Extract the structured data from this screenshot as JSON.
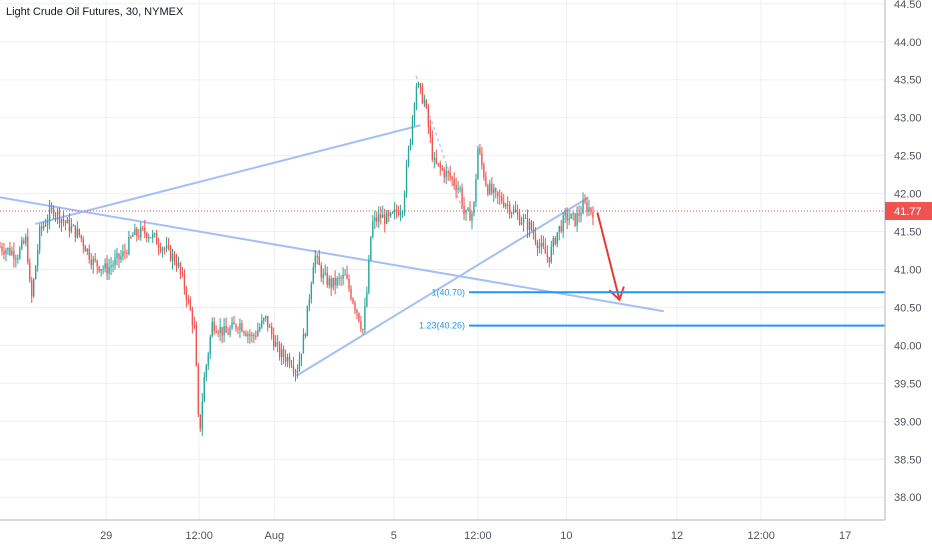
{
  "title": "Light Crude Oil Futures, 30, NYMEX",
  "colors": {
    "up": "#26a69a",
    "down": "#ef5350",
    "trendline": "#a3bff5",
    "fib": "#2196f3",
    "arrow": "#e53935",
    "price_badge": "#ef5350",
    "grid": "#eef0f3",
    "axis_text": "#50535e"
  },
  "chart_data": {
    "type": "candlestick",
    "title": "Light Crude Oil Futures, 30, NYMEX",
    "ylim": [
      37.7,
      44.55
    ],
    "y_ticks": [
      "38.00",
      "38.50",
      "39.00",
      "39.50",
      "40.00",
      "40.50",
      "41.00",
      "41.50",
      "42.00",
      "42.50",
      "43.00",
      "43.50",
      "44.00",
      "44.50"
    ],
    "x_ticks": [
      {
        "label": "29",
        "t": 0.12
      },
      {
        "label": "12:00",
        "t": 0.225
      },
      {
        "label": "Aug",
        "t": 0.31
      },
      {
        "label": "5",
        "t": 0.445
      },
      {
        "label": "12:00",
        "t": 0.54
      },
      {
        "label": "10",
        "t": 0.64
      },
      {
        "label": "12",
        "t": 0.765
      },
      {
        "label": "12:00",
        "t": 0.86
      },
      {
        "label": "17",
        "t": 0.955
      }
    ],
    "last_price": "41.77",
    "path": [
      [
        0.0,
        41.3
      ],
      [
        0.02,
        41.2
      ],
      [
        0.03,
        41.4
      ],
      [
        0.035,
        40.55
      ],
      [
        0.045,
        41.5
      ],
      [
        0.06,
        41.8
      ],
      [
        0.075,
        41.6
      ],
      [
        0.09,
        41.45
      ],
      [
        0.105,
        41.1
      ],
      [
        0.12,
        41.0
      ],
      [
        0.14,
        41.2
      ],
      [
        0.15,
        41.45
      ],
      [
        0.165,
        41.5
      ],
      [
        0.18,
        41.35
      ],
      [
        0.2,
        41.1
      ],
      [
        0.21,
        40.7
      ],
      [
        0.22,
        40.2
      ],
      [
        0.225,
        38.75
      ],
      [
        0.23,
        39.5
      ],
      [
        0.24,
        40.3
      ],
      [
        0.255,
        40.15
      ],
      [
        0.27,
        40.3
      ],
      [
        0.285,
        40.1
      ],
      [
        0.3,
        40.35
      ],
      [
        0.315,
        39.9
      ],
      [
        0.33,
        39.8
      ],
      [
        0.335,
        39.65
      ],
      [
        0.345,
        40.2
      ],
      [
        0.355,
        41.2
      ],
      [
        0.365,
        40.9
      ],
      [
        0.375,
        40.8
      ],
      [
        0.39,
        40.9
      ],
      [
        0.405,
        40.4
      ],
      [
        0.41,
        40.2
      ],
      [
        0.415,
        40.75
      ],
      [
        0.42,
        41.6
      ],
      [
        0.43,
        41.7
      ],
      [
        0.44,
        41.65
      ],
      [
        0.455,
        41.85
      ],
      [
        0.465,
        42.9
      ],
      [
        0.47,
        43.45
      ],
      [
        0.48,
        43.2
      ],
      [
        0.49,
        42.4
      ],
      [
        0.5,
        42.3
      ],
      [
        0.51,
        42.2
      ],
      [
        0.52,
        42.05
      ],
      [
        0.525,
        41.7
      ],
      [
        0.535,
        41.75
      ],
      [
        0.54,
        42.6
      ],
      [
        0.55,
        42.1
      ],
      [
        0.56,
        41.95
      ],
      [
        0.57,
        41.9
      ],
      [
        0.585,
        41.7
      ],
      [
        0.6,
        41.55
      ],
      [
        0.61,
        41.3
      ],
      [
        0.62,
        41.15
      ],
      [
        0.63,
        41.5
      ],
      [
        0.64,
        41.7
      ],
      [
        0.65,
        41.65
      ],
      [
        0.66,
        41.85
      ],
      [
        0.67,
        41.77
      ]
    ],
    "lines": [
      {
        "points": [
          [
            0.0,
            41.95
          ],
          [
            0.75,
            40.45
          ]
        ]
      },
      {
        "points": [
          [
            0.04,
            41.6
          ],
          [
            0.475,
            42.9
          ]
        ]
      },
      {
        "points": [
          [
            0.335,
            39.6
          ],
          [
            0.665,
            41.95
          ]
        ]
      }
    ],
    "dashed_lines": [
      {
        "points": [
          [
            0.47,
            43.55
          ],
          [
            0.525,
            41.7
          ]
        ]
      }
    ],
    "fib_levels": [
      {
        "label": "1(40.70)",
        "value": 40.7,
        "t_start": 0.53
      },
      {
        "label": "1.23(40.26)",
        "value": 40.26,
        "t_start": 0.53
      }
    ],
    "arrow": {
      "from": [
        0.675,
        41.75
      ],
      "to": [
        0.7,
        40.6
      ]
    }
  }
}
